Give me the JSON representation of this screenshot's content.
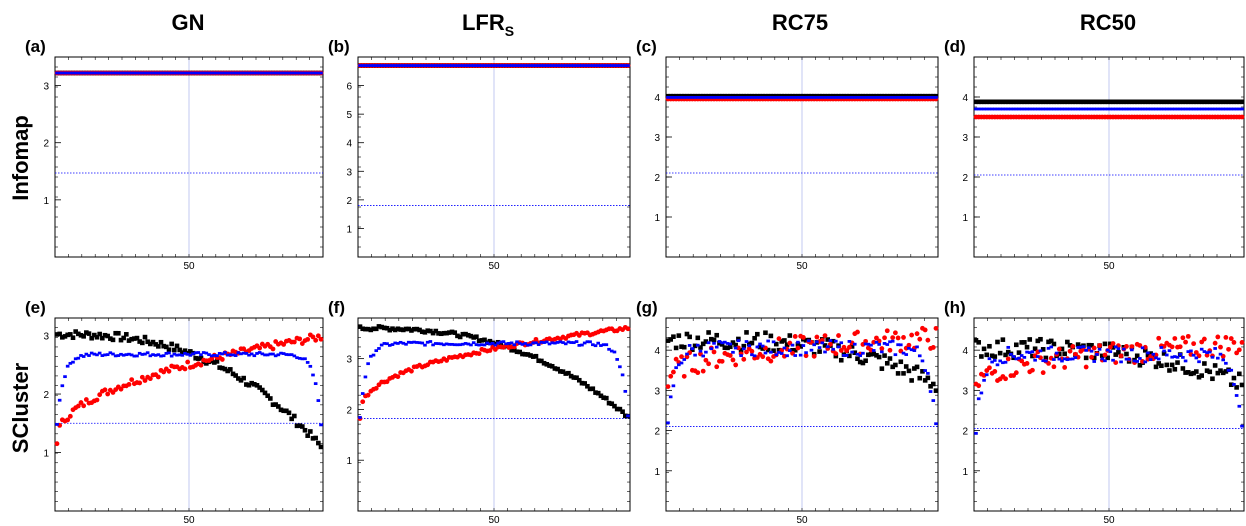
{
  "figure": {
    "columns": [
      {
        "title": "GN",
        "subscript": ""
      },
      {
        "title": "LFR",
        "subscript": "S"
      },
      {
        "title": "RC75",
        "subscript": ""
      },
      {
        "title": "RC50",
        "subscript": ""
      }
    ],
    "rows": [
      "Infomap",
      "SCluster"
    ]
  },
  "colors": {
    "black_series": "#000000",
    "red_series": "#ff0000",
    "blue_series": "#0000ff",
    "reference": "#0000ff"
  },
  "chart_data": [
    {
      "letter": "(a)",
      "type": "scatter",
      "x_tick": "50",
      "xlim": [
        0,
        100
      ],
      "ylim": [
        0,
        3.5
      ],
      "y_ticks": [
        "1",
        "2",
        "3"
      ],
      "y_tick_values": [
        1,
        2,
        3
      ],
      "reference_line": 1.47,
      "series": [
        {
          "color": "black",
          "marker": "square",
          "start": 3.22,
          "end": 3.22,
          "curve": 0,
          "noise": 0
        },
        {
          "color": "red",
          "marker": "circle",
          "start": 3.22,
          "end": 3.22,
          "curve": 0,
          "noise": 0
        },
        {
          "color": "blue",
          "marker": "dash",
          "start": 3.22,
          "end": 3.22,
          "curve": 0,
          "noise": 0
        }
      ]
    },
    {
      "letter": "(b)",
      "type": "scatter",
      "x_tick": "50",
      "xlim": [
        0,
        100
      ],
      "ylim": [
        0,
        7
      ],
      "y_ticks": [
        "1",
        "2",
        "3",
        "4",
        "5",
        "6"
      ],
      "y_tick_values": [
        1,
        2,
        3,
        4,
        5,
        6
      ],
      "reference_line": 1.8,
      "series": [
        {
          "color": "black",
          "marker": "square",
          "start": 6.7,
          "end": 6.7,
          "curve": 0,
          "noise": 0
        },
        {
          "color": "red",
          "marker": "circle",
          "start": 6.7,
          "end": 6.7,
          "curve": 0,
          "noise": 0
        },
        {
          "color": "blue",
          "marker": "dash",
          "start": 6.7,
          "end": 6.7,
          "curve": 0,
          "noise": 0
        }
      ]
    },
    {
      "letter": "(c)",
      "type": "scatter",
      "x_tick": "50",
      "xlim": [
        0,
        100
      ],
      "ylim": [
        0,
        5
      ],
      "y_ticks": [
        "1",
        "2",
        "3",
        "4"
      ],
      "y_tick_values": [
        1,
        2,
        3,
        4
      ],
      "reference_line": 2.1,
      "series": [
        {
          "color": "black",
          "marker": "square",
          "start": 4.02,
          "end": 4.02,
          "curve": 0,
          "noise": 0
        },
        {
          "color": "red",
          "marker": "circle",
          "start": 3.95,
          "end": 3.95,
          "curve": 0,
          "noise": 0
        },
        {
          "color": "blue",
          "marker": "dash",
          "start": 3.99,
          "end": 3.99,
          "curve": 0,
          "noise": 0
        }
      ]
    },
    {
      "letter": "(d)",
      "type": "scatter",
      "x_tick": "50",
      "xlim": [
        0,
        100
      ],
      "ylim": [
        0,
        5
      ],
      "y_ticks": [
        "1",
        "2",
        "3",
        "4"
      ],
      "y_tick_values": [
        1,
        2,
        3,
        4
      ],
      "reference_line": 2.05,
      "series": [
        {
          "color": "black",
          "marker": "square",
          "start": 3.88,
          "end": 3.88,
          "curve": 0,
          "noise": 0
        },
        {
          "color": "red",
          "marker": "circle",
          "start": 3.5,
          "end": 3.5,
          "curve": 0,
          "noise": 0
        },
        {
          "color": "blue",
          "marker": "dash",
          "start": 3.7,
          "end": 3.7,
          "curve": 0,
          "noise": 0
        }
      ]
    },
    {
      "letter": "(e)",
      "type": "scatter",
      "x_tick": "50",
      "xlim": [
        0,
        100
      ],
      "ylim": [
        0,
        3.3
      ],
      "y_ticks": [
        "1",
        "2",
        "3"
      ],
      "y_tick_values": [
        1,
        2,
        3
      ],
      "reference_line": 1.5,
      "series": [
        {
          "color": "black",
          "marker": "square",
          "start": 3.02,
          "end": 1.1,
          "curve": 2.6,
          "noise": 0.02
        },
        {
          "color": "red",
          "marker": "circle",
          "start": 1.2,
          "end": 2.98,
          "curve": 0.45,
          "noise": 0.02
        },
        {
          "color": "blue",
          "marker": "dash",
          "start": 1.5,
          "end": 1.5,
          "peak": 2.68,
          "shape": "arch",
          "noise": 0.01
        }
      ]
    },
    {
      "letter": "(f)",
      "type": "scatter",
      "x_tick": "50",
      "xlim": [
        0,
        100
      ],
      "ylim": [
        0,
        3.8
      ],
      "y_ticks": [
        "1",
        "2",
        "3"
      ],
      "y_tick_values": [
        1,
        2,
        3
      ],
      "reference_line": 1.82,
      "series": [
        {
          "color": "black",
          "marker": "square",
          "start": 3.6,
          "end": 1.85,
          "curve": 2.6,
          "noise": 0.01
        },
        {
          "color": "red",
          "marker": "circle",
          "start": 1.85,
          "end": 3.6,
          "curve": 0.38,
          "noise": 0.01
        },
        {
          "color": "blue",
          "marker": "dash",
          "start": 1.85,
          "end": 1.85,
          "peak": 3.3,
          "shape": "arch",
          "noise": 0.01
        }
      ]
    },
    {
      "letter": "(g)",
      "type": "scatter",
      "x_tick": "50",
      "xlim": [
        0,
        100
      ],
      "ylim": [
        0,
        4.8
      ],
      "y_ticks": [
        "1",
        "2",
        "3",
        "4"
      ],
      "y_tick_values": [
        1,
        2,
        3,
        4
      ],
      "reference_line": 2.1,
      "series": [
        {
          "color": "black",
          "marker": "square",
          "start": 4.25,
          "end": 3.15,
          "curve": 3.2,
          "noise": 0.05
        },
        {
          "color": "red",
          "marker": "circle",
          "start": 3.1,
          "end": 4.3,
          "curve": 0.3,
          "noise": 0.06
        },
        {
          "color": "blue",
          "marker": "dash",
          "start": 2.05,
          "end": 2.05,
          "peak": 4.05,
          "shape": "arch",
          "noise": 0.04
        }
      ]
    },
    {
      "letter": "(h)",
      "type": "scatter",
      "x_tick": "50",
      "xlim": [
        0,
        100
      ],
      "ylim": [
        0,
        4.8
      ],
      "y_ticks": [
        "1",
        "2",
        "3",
        "4"
      ],
      "y_tick_values": [
        1,
        2,
        3,
        4
      ],
      "reference_line": 2.05,
      "series": [
        {
          "color": "black",
          "marker": "square",
          "start": 4.05,
          "end": 3.15,
          "curve": 3.2,
          "noise": 0.05
        },
        {
          "color": "red",
          "marker": "circle",
          "start": 2.9,
          "end": 4.15,
          "curve": 0.3,
          "noise": 0.06
        },
        {
          "color": "blue",
          "marker": "dash",
          "start": 2.0,
          "end": 2.0,
          "peak": 3.9,
          "shape": "arch",
          "noise": 0.04
        }
      ]
    }
  ]
}
